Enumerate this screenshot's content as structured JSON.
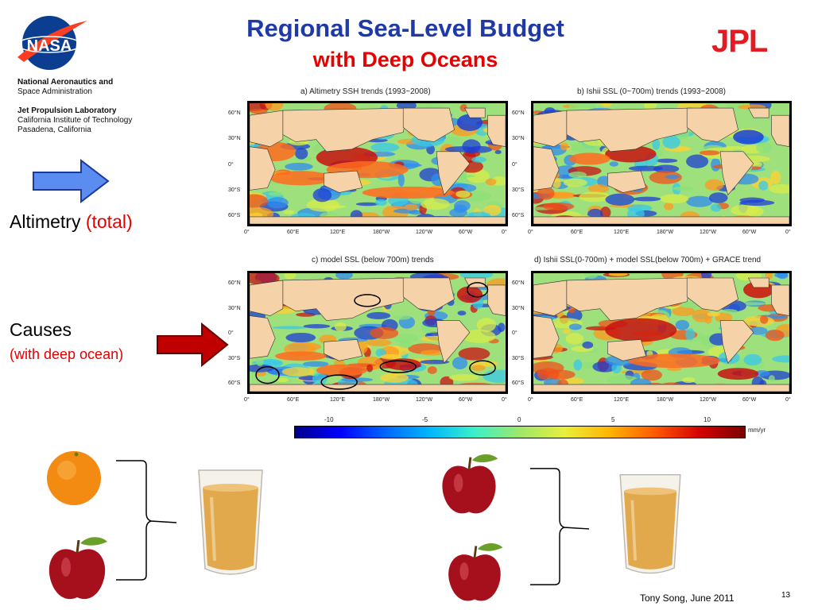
{
  "header": {
    "title_line1": "Regional Sea-Level Budget",
    "title_line2": "with Deep Oceans",
    "nasa_org_line1": "National Aeronautics and",
    "nasa_org_line2": "Space Administration",
    "jpl_line1": "Jet Propulsion Laboratory",
    "jpl_line2": "California Institute of Technology",
    "jpl_line3": "Pasadena, California",
    "nasa_logo_text": "NASA",
    "jpl_logo_text": "JPL"
  },
  "labels": {
    "altimetry": "Altimetry",
    "altimetry_paren": "(total)",
    "causes": "Causes",
    "causes_sub": "(with deep ocean)"
  },
  "panels": [
    {
      "title": "a) Altimetry SSH trends (1993~2008)"
    },
    {
      "title": "b) Ishii SSL (0~700m) trends (1993~2008)"
    },
    {
      "title": "c) model SSL (below 700m) trends"
    },
    {
      "title": "d) Ishii SSL(0-700m) + model SSL(below 700m) + GRACE trend"
    }
  ],
  "lat_ticks": [
    "60°N",
    "30°N",
    "0°",
    "30°S",
    "60°S"
  ],
  "lon_ticks": [
    "0°",
    "60°E",
    "120°E",
    "180°W",
    "120°W",
    "60°W",
    "0°"
  ],
  "colorbar": {
    "ticks": [
      "-10",
      "-5",
      "0",
      "5",
      "10"
    ],
    "unit": "mm/yr"
  },
  "footer": {
    "credit": "Tony Song, June 2011",
    "page_number": "13"
  },
  "colors": {
    "title_blue": "#1f3aa6",
    "accent_red": "#e60000",
    "arrow_blue": "#5b8cf0",
    "arrow_red": "#c00000"
  }
}
